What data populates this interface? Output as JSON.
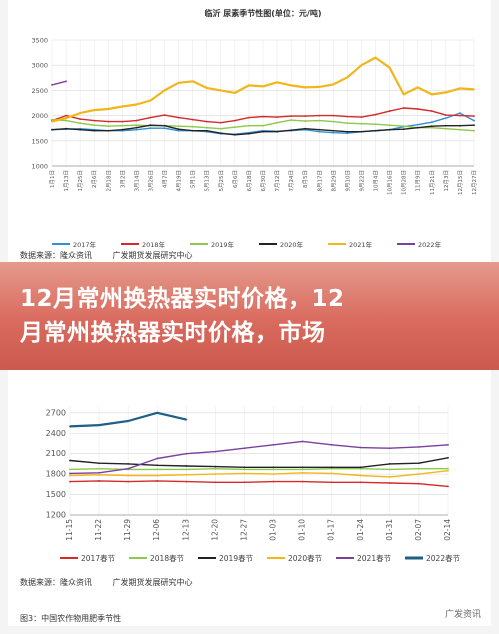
{
  "top_panel": {
    "source_text": [
      "数据来源：隆众资讯",
      "广发期货发展研究中心"
    ]
  },
  "banner": {
    "line1": "12月常州换热器实时价格，12",
    "line2": "月常州换热器实时价格，市场"
  },
  "bottom_panel": {
    "source_text": [
      "数据来源：隆众资讯",
      "广发期货发展研究中心"
    ],
    "figure_caption": "图3：中国农作物用肥季节性",
    "watermark": "广发资讯"
  },
  "colors": {
    "y2017": "#2e8fd6",
    "y2018": "#d42a2a",
    "y2019": "#8cc84b",
    "y2020": "#222222",
    "y2021": "#f2b61a",
    "y2022": "#7b3fa0",
    "spring2022": "#1f5f86"
  },
  "chart_data": [
    {
      "type": "line",
      "title": "临沂 尿素季节性图(单位：元/吨)",
      "ylim": [
        1000,
        3500
      ],
      "yticks": [
        1000,
        1500,
        2000,
        2500,
        3000,
        3500
      ],
      "x_tick_labels": [
        "1月1日",
        "1月13日",
        "1月25日",
        "2月6日",
        "2月18日",
        "3月2日",
        "3月14日",
        "3月26日",
        "4月7日",
        "4月19日",
        "5月1日",
        "5月13日",
        "5月25日",
        "6月6日",
        "6月18日",
        "6月30日",
        "7月12日",
        "7月24日",
        "8月5日",
        "8月17日",
        "8月29日",
        "9月10日",
        "9月22日",
        "10月4日",
        "10月16日",
        "10月28日",
        "11月9日",
        "11月21日",
        "12月3日",
        "12月15日",
        "12月27日"
      ],
      "legend_position": "bottom",
      "series": [
        {
          "name": "2017年",
          "color_key": "y2017",
          "values": [
            1720,
            1730,
            1740,
            1720,
            1700,
            1700,
            1720,
            1750,
            1750,
            1700,
            1700,
            1680,
            1640,
            1630,
            1660,
            1700,
            1690,
            1700,
            1720,
            1680,
            1660,
            1650,
            1680,
            1700,
            1720,
            1780,
            1820,
            1870,
            1950,
            2050,
            1900
          ]
        },
        {
          "name": "2018年",
          "color_key": "y2018",
          "values": [
            1900,
            2000,
            1930,
            1900,
            1880,
            1880,
            1900,
            1960,
            2010,
            1960,
            1920,
            1880,
            1860,
            1900,
            1960,
            1980,
            1970,
            1990,
            1990,
            2000,
            2000,
            1980,
            1970,
            2020,
            2090,
            2150,
            2130,
            2090,
            2010,
            2000,
            1990
          ]
        },
        {
          "name": "2019年",
          "color_key": "y2019",
          "values": [
            1920,
            1900,
            1850,
            1810,
            1790,
            1800,
            1810,
            1800,
            1800,
            1790,
            1780,
            1760,
            1740,
            1770,
            1800,
            1800,
            1860,
            1910,
            1890,
            1900,
            1880,
            1850,
            1840,
            1830,
            1810,
            1790,
            1760,
            1760,
            1740,
            1720,
            1700
          ]
        },
        {
          "name": "2020年",
          "color_key": "y2020",
          "values": [
            1720,
            1740,
            1720,
            1700,
            1700,
            1720,
            1760,
            1810,
            1800,
            1730,
            1700,
            1700,
            1650,
            1620,
            1640,
            1680,
            1680,
            1710,
            1740,
            1720,
            1700,
            1680,
            1680,
            1700,
            1720,
            1730,
            1760,
            1790,
            1800,
            1800,
            1810
          ]
        },
        {
          "name": "2021年",
          "color_key": "y2021",
          "values": [
            1880,
            1950,
            2050,
            2110,
            2130,
            2180,
            2220,
            2300,
            2500,
            2650,
            2680,
            2550,
            2500,
            2450,
            2600,
            2580,
            2660,
            2600,
            2560,
            2570,
            2620,
            2760,
            3000,
            3150,
            2950,
            2420,
            2560,
            2420,
            2460,
            2540,
            2520
          ]
        },
        {
          "name": "2022年",
          "color_key": "y2022",
          "values": [
            2610,
            2680
          ]
        }
      ]
    },
    {
      "type": "line",
      "title": "",
      "ylim": [
        1200,
        2800
      ],
      "yticks": [
        1200,
        1500,
        1800,
        2100,
        2400,
        2700
      ],
      "x_tick_labels": [
        "11-15",
        "11-22",
        "11-29",
        "12-06",
        "12-13",
        "12-20",
        "12-27",
        "01-03",
        "01-10",
        "01-17",
        "01-24",
        "01-31",
        "02-07",
        "02-14"
      ],
      "legend_position": "bottom",
      "series": [
        {
          "name": "2017春节",
          "color_key": "y2018",
          "values": [
            1690,
            1700,
            1690,
            1700,
            1690,
            1680,
            1680,
            1690,
            1690,
            1680,
            1680,
            1670,
            1660,
            1620
          ]
        },
        {
          "name": "2018春节",
          "color_key": "y2019",
          "values": [
            1870,
            1880,
            1870,
            1870,
            1870,
            1880,
            1870,
            1870,
            1870,
            1880,
            1880,
            1870,
            1880,
            1880
          ]
        },
        {
          "name": "2019春节",
          "color_key": "y2020",
          "values": [
            2000,
            1960,
            1950,
            1930,
            1920,
            1910,
            1900,
            1900,
            1900,
            1900,
            1900,
            1950,
            1960,
            2040
          ]
        },
        {
          "name": "2020春节",
          "color_key": "y2021",
          "values": [
            1780,
            1790,
            1780,
            1780,
            1790,
            1800,
            1810,
            1800,
            1820,
            1810,
            1780,
            1760,
            1800,
            1850
          ]
        },
        {
          "name": "2021春节",
          "color_key": "y2022",
          "values": [
            1810,
            1820,
            1880,
            2030,
            2100,
            2130,
            2180,
            2230,
            2280,
            2230,
            2190,
            2180,
            2200,
            2230
          ]
        },
        {
          "name": "2022春节",
          "color_key": "spring2022",
          "values": [
            2500,
            2520,
            2580,
            2700,
            2600
          ]
        }
      ]
    }
  ]
}
